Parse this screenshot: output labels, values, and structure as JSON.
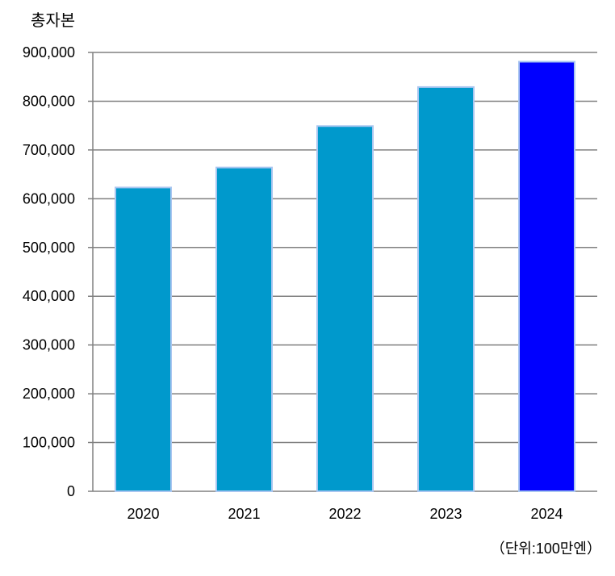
{
  "chart_data": {
    "type": "bar",
    "title": "총자본",
    "unit_note": "（단위:100만엔）",
    "categories": [
      "2020",
      "2021",
      "2022",
      "2023",
      "2024"
    ],
    "values": [
      623000,
      664000,
      749000,
      829000,
      881000
    ],
    "ylim": [
      0,
      900000
    ],
    "yticks": [
      0,
      100000,
      200000,
      300000,
      400000,
      500000,
      600000,
      700000,
      800000,
      900000
    ],
    "ytick_labels": [
      "0",
      "100,000",
      "200,000",
      "300,000",
      "400,000",
      "500,000",
      "600,000",
      "700,000",
      "800,000",
      "900,000"
    ],
    "grid": true,
    "bar_colors": [
      "#0099cc",
      "#0099cc",
      "#0099cc",
      "#0099cc",
      "#0000ff"
    ],
    "bar_edge_color": "#a9c6f0",
    "grid_color": "#808080"
  }
}
